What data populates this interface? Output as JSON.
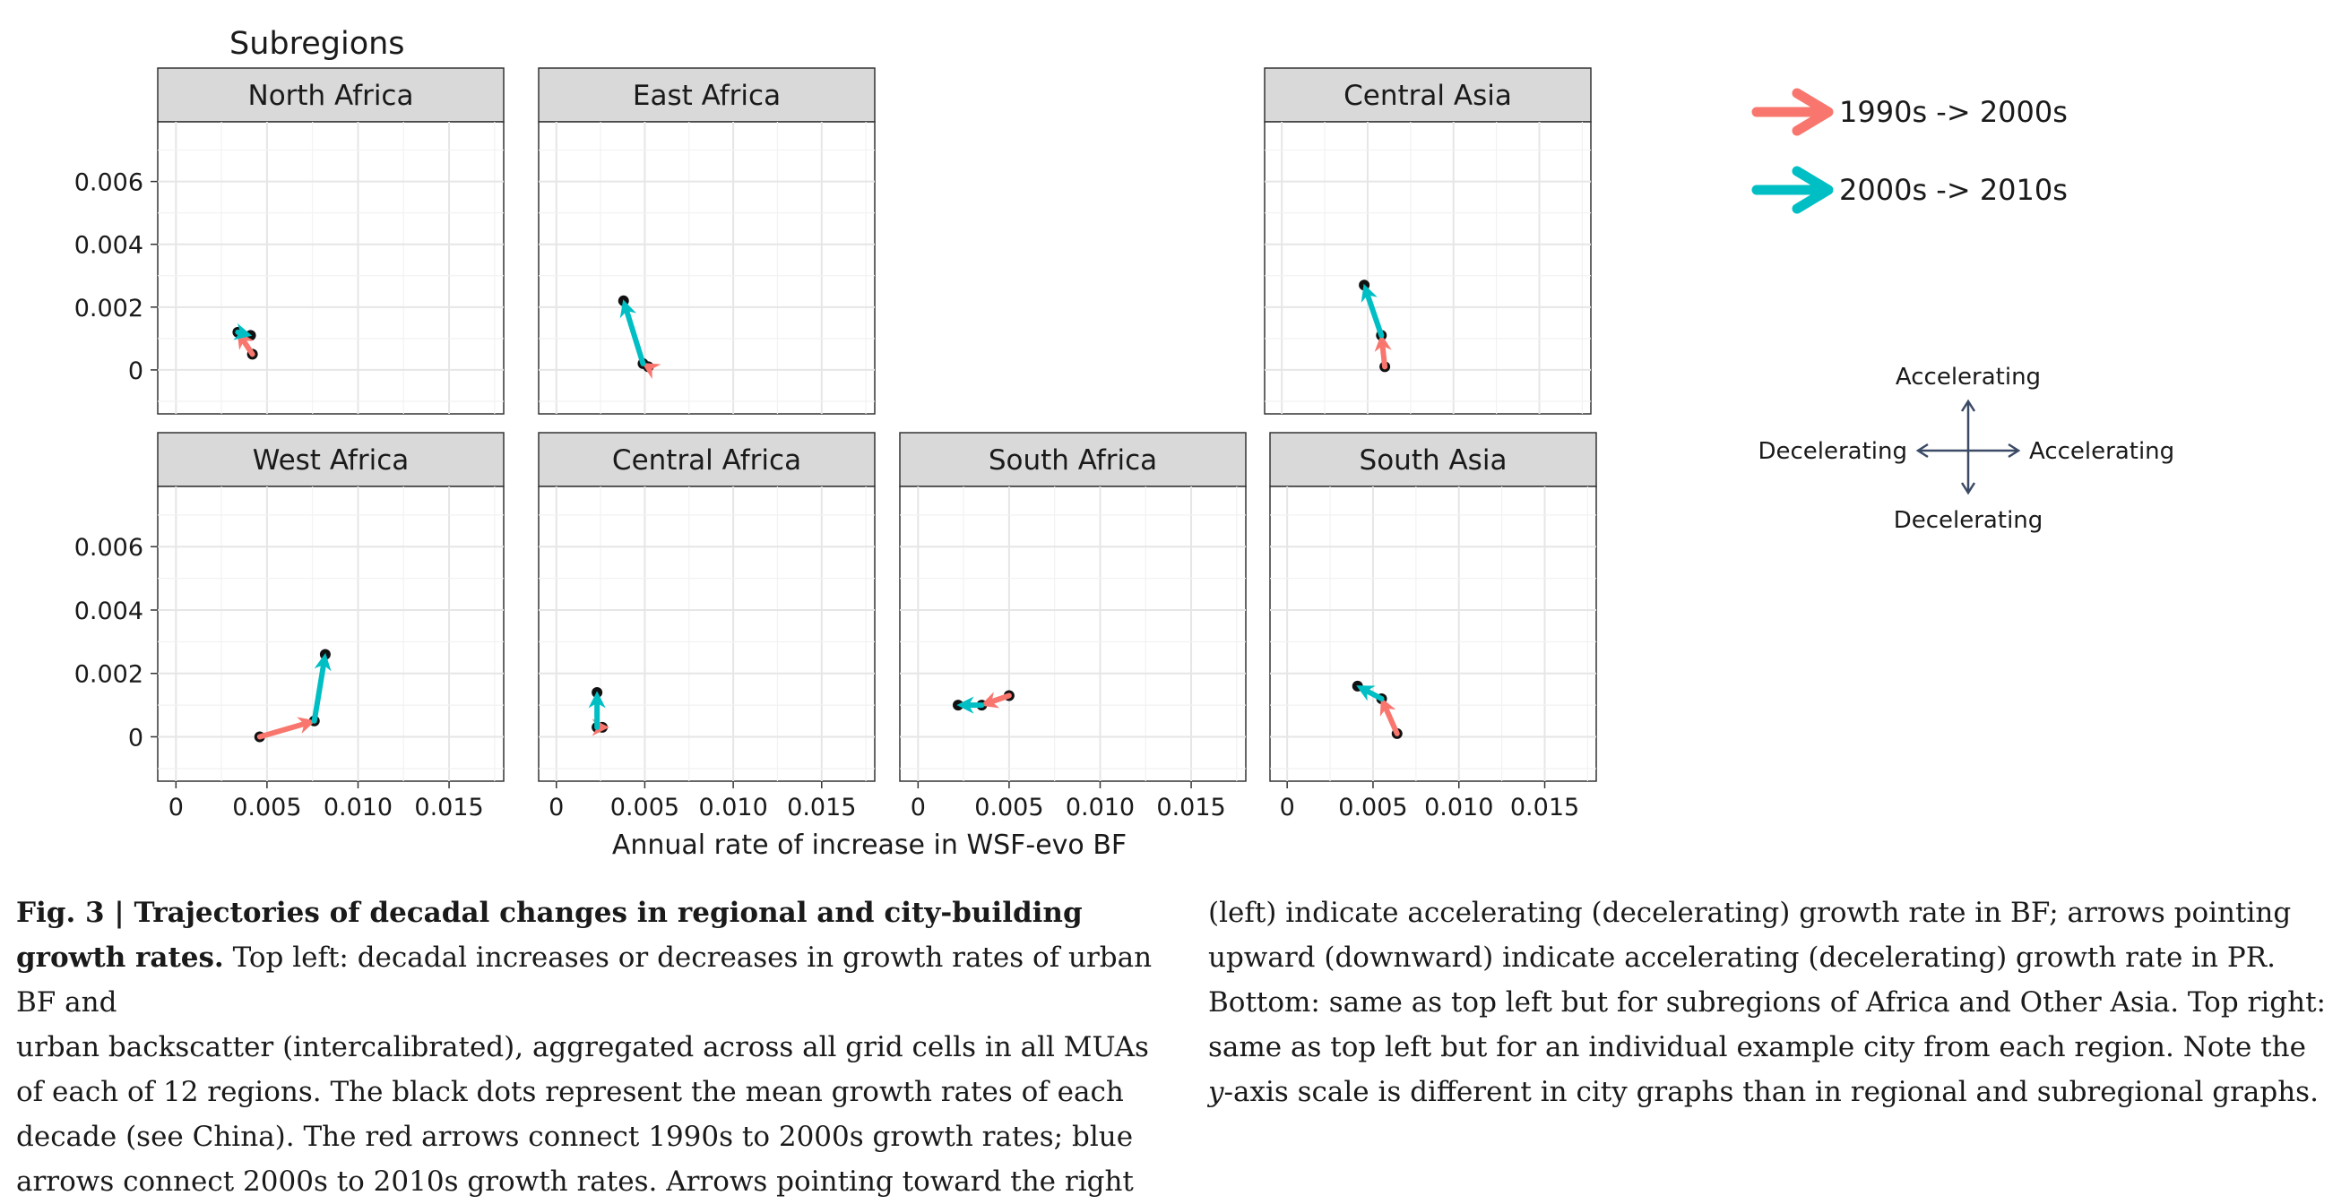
{
  "figure": {
    "section_title": "Subregions",
    "x_axis_label": "Annual rate of increase in WSF-evo BF",
    "y_ticks": [
      "0",
      "0.002",
      "0.004",
      "0.006"
    ],
    "x_ticks": [
      "0",
      "0.005",
      "0.010",
      "0.015"
    ]
  },
  "legend": {
    "series": [
      {
        "name": "1990s -> 2000s",
        "color": "#F8766D"
      },
      {
        "name": "2000s -> 2010s",
        "color": "#00BFC4"
      }
    ],
    "compass": {
      "up": "Accelerating",
      "down": "Decelerating",
      "left": "Decelerating",
      "right": "Accelerating"
    }
  },
  "chart_data": [
    {
      "type": "scatter",
      "title": "North Africa",
      "xlim": [
        -0.001,
        0.018
      ],
      "ylim": [
        -0.0014,
        0.0079
      ],
      "points": [
        {
          "x": 0.0042,
          "y": 0.0005
        },
        {
          "x": 0.0034,
          "y": 0.0012
        },
        {
          "x": 0.0041,
          "y": 0.0011
        }
      ]
    },
    {
      "type": "scatter",
      "title": "East Africa",
      "xlim": [
        -0.001,
        0.018
      ],
      "ylim": [
        -0.0014,
        0.0079
      ],
      "points": [
        {
          "x": 0.0052,
          "y": 0.0001
        },
        {
          "x": 0.0049,
          "y": 0.0002
        },
        {
          "x": 0.0038,
          "y": 0.0022
        }
      ]
    },
    {
      "type": "scatter",
      "title": "Central Asia",
      "xlim": [
        -0.001,
        0.018
      ],
      "ylim": [
        -0.0014,
        0.0079
      ],
      "points": [
        {
          "x": 0.006,
          "y": 0.0001
        },
        {
          "x": 0.0058,
          "y": 0.0011
        },
        {
          "x": 0.0048,
          "y": 0.0027
        }
      ]
    },
    {
      "type": "scatter",
      "title": "West Africa",
      "xlim": [
        -0.001,
        0.018
      ],
      "ylim": [
        -0.0014,
        0.0079
      ],
      "points": [
        {
          "x": 0.0046,
          "y": 0.0
        },
        {
          "x": 0.0076,
          "y": 0.0005
        },
        {
          "x": 0.0082,
          "y": 0.0026
        }
      ]
    },
    {
      "type": "scatter",
      "title": "Central Africa",
      "xlim": [
        -0.001,
        0.018
      ],
      "ylim": [
        -0.0014,
        0.0079
      ],
      "points": [
        {
          "x": 0.0026,
          "y": 0.0003
        },
        {
          "x": 0.0023,
          "y": 0.0003
        },
        {
          "x": 0.0023,
          "y": 0.0014
        }
      ]
    },
    {
      "type": "scatter",
      "title": "South Africa",
      "xlim": [
        -0.001,
        0.018
      ],
      "ylim": [
        -0.0014,
        0.0079
      ],
      "points": [
        {
          "x": 0.005,
          "y": 0.0013
        },
        {
          "x": 0.0035,
          "y": 0.001
        },
        {
          "x": 0.0022,
          "y": 0.001
        }
      ]
    },
    {
      "type": "scatter",
      "title": "South Asia",
      "xlim": [
        -0.001,
        0.018
      ],
      "ylim": [
        -0.0014,
        0.0079
      ],
      "points": [
        {
          "x": 0.0064,
          "y": 0.0001
        },
        {
          "x": 0.0055,
          "y": 0.0012
        },
        {
          "x": 0.0041,
          "y": 0.0016
        }
      ]
    }
  ],
  "caption": {
    "fig_label": "Fig. 3 | Trajectories of decadal changes in regional and city-building growth rates.",
    "left_lines": [
      " Top left: decadal increases or decreases in growth rates of urban BF and",
      "urban backscatter (intercalibrated), aggregated across all grid cells in all MUAs",
      "of each of 12 regions. The black dots represent the mean growth rates of each",
      "decade (see China). The red arrows connect 1990s to 2000s growth rates; blue",
      "arrows connect 2000s to 2010s growth rates. Arrows pointing toward the right"
    ],
    "right_lines": [
      "(left) indicate accelerating (decelerating) growth rate in BF; arrows pointing",
      "upward (downward) indicate accelerating (decelerating) growth rate in PR.",
      "Bottom: same as top left but for subregions of Africa and Other Asia. Top right:",
      "same as top left but for an individual example city from each region. Note the"
    ],
    "last_right_italic": "y",
    "last_right_rest": "-axis scale is different in city graphs than in regional and subregional graphs."
  }
}
